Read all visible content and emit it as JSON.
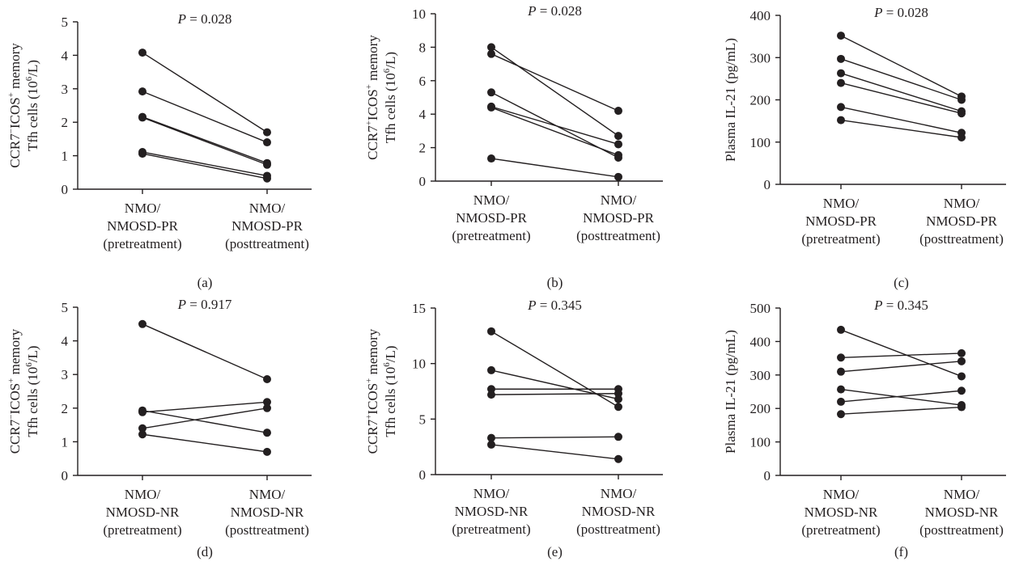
{
  "chart_data": [
    {
      "panel": "(a)",
      "type": "line",
      "p_value": {
        "label": "P",
        "text": " = 0.028"
      },
      "ylabel": {
        "line1": [
          "CCR7",
          {
            "sup": "−"
          },
          "ICOS",
          {
            "sup": "+"
          },
          " memory"
        ],
        "line2": [
          "Tfh cells (10",
          {
            "sup": "6"
          },
          "/L)"
        ]
      },
      "ylim": [
        0,
        5
      ],
      "yticks": [
        0,
        1,
        2,
        3,
        4,
        5
      ],
      "categories": [
        [
          "NMO/",
          "NMOSD-PR",
          "(pretreatment)"
        ],
        [
          "NMO/",
          "NMOSD-PR",
          "(posttreatment)"
        ]
      ],
      "pairs": [
        [
          4.08,
          1.7
        ],
        [
          2.92,
          1.4
        ],
        [
          2.16,
          0.78
        ],
        [
          2.14,
          0.73
        ],
        [
          1.11,
          0.4
        ],
        [
          1.06,
          0.32
        ]
      ]
    },
    {
      "panel": "(b)",
      "type": "line",
      "p_value": {
        "label": "P",
        "text": " = 0.028"
      },
      "ylabel": {
        "line1": [
          "CCR7",
          {
            "sup": "+"
          },
          "ICOS",
          {
            "sup": "+"
          },
          " memory"
        ],
        "line2": [
          "Tfh cells (10",
          {
            "sup": "6"
          },
          "/L)"
        ]
      },
      "ylim": [
        0,
        10
      ],
      "yticks": [
        0,
        2,
        4,
        6,
        8,
        10
      ],
      "categories": [
        [
          "NMO/",
          "NMOSD-PR",
          "(pretreatment)"
        ],
        [
          "NMO/",
          "NMOSD-PR",
          "(posttreatment)"
        ]
      ],
      "pairs": [
        [
          8.0,
          2.7
        ],
        [
          7.6,
          4.2
        ],
        [
          5.3,
          1.4
        ],
        [
          4.45,
          2.2
        ],
        [
          4.4,
          1.55
        ],
        [
          1.35,
          0.25
        ]
      ]
    },
    {
      "panel": "(c)",
      "type": "line",
      "p_value": {
        "label": "P",
        "text": " = 0.028"
      },
      "ylabel": {
        "line1": [
          "Plasma IL-21 (pg/mL)"
        ],
        "line2": []
      },
      "ylim": [
        0,
        400
      ],
      "yticks": [
        0,
        100,
        200,
        300,
        400
      ],
      "categories": [
        [
          "NMO/",
          "NMOSD-PR",
          "(pretreatment)"
        ],
        [
          "NMO/",
          "NMOSD-PR",
          "(posttreatment)"
        ]
      ],
      "pairs": [
        [
          352,
          208
        ],
        [
          297,
          200
        ],
        [
          263,
          173
        ],
        [
          240,
          168
        ],
        [
          183,
          122
        ],
        [
          152,
          111
        ]
      ]
    },
    {
      "panel": "(d)",
      "type": "line",
      "p_value": {
        "label": "P",
        "text": " = 0.917"
      },
      "ylabel": {
        "line1": [
          "CCR7",
          {
            "sup": "−"
          },
          "ICOS",
          {
            "sup": "+"
          },
          " memory"
        ],
        "line2": [
          "Tfh cells (10",
          {
            "sup": "6"
          },
          "/L)"
        ]
      },
      "ylim": [
        0,
        5
      ],
      "yticks": [
        0,
        1,
        2,
        3,
        4,
        5
      ],
      "categories": [
        [
          "NMO/",
          "NMOSD-NR",
          "(pretreatment)"
        ],
        [
          "NMO/",
          "NMOSD-NR",
          "(posttreatment)"
        ]
      ],
      "pairs": [
        [
          4.5,
          2.86
        ],
        [
          1.93,
          1.27
        ],
        [
          1.88,
          2.18
        ],
        [
          1.4,
          2.0
        ],
        [
          1.22,
          0.7
        ]
      ]
    },
    {
      "panel": "(e)",
      "type": "line",
      "p_value": {
        "label": "P",
        "text": " = 0.345"
      },
      "ylabel": {
        "line1": [
          "CCR7",
          {
            "sup": "+"
          },
          "ICOS",
          {
            "sup": "+"
          },
          " memory"
        ],
        "line2": [
          "Tfh cells (10",
          {
            "sup": "6"
          },
          "/L)"
        ]
      },
      "ylim": [
        0,
        15
      ],
      "yticks": [
        0,
        5,
        10,
        15
      ],
      "categories": [
        [
          "NMO/",
          "NMOSD-NR",
          "(pretreatment)"
        ],
        [
          "NMO/",
          "NMOSD-NR",
          "(posttreatment)"
        ]
      ],
      "pairs": [
        [
          12.9,
          6.1
        ],
        [
          9.4,
          6.8
        ],
        [
          7.7,
          7.7
        ],
        [
          7.2,
          7.3
        ],
        [
          3.3,
          3.4
        ],
        [
          2.7,
          1.4
        ]
      ]
    },
    {
      "panel": "(f)",
      "type": "line",
      "p_value": {
        "label": "P",
        "text": " = 0.345"
      },
      "ylabel": {
        "line1": [
          "Plasma IL-21 (pg/mL)"
        ],
        "line2": []
      },
      "ylim": [
        0,
        500
      ],
      "yticks": [
        0,
        100,
        200,
        300,
        400,
        500
      ],
      "categories": [
        [
          "NMO/",
          "NMOSD-NR",
          "(pretreatment)"
        ],
        [
          "NMO/",
          "NMOSD-NR",
          "(posttreatment)"
        ]
      ],
      "pairs": [
        [
          435,
          296
        ],
        [
          352,
          365
        ],
        [
          310,
          341
        ],
        [
          257,
          210
        ],
        [
          220,
          253
        ],
        [
          183,
          204
        ]
      ]
    }
  ]
}
